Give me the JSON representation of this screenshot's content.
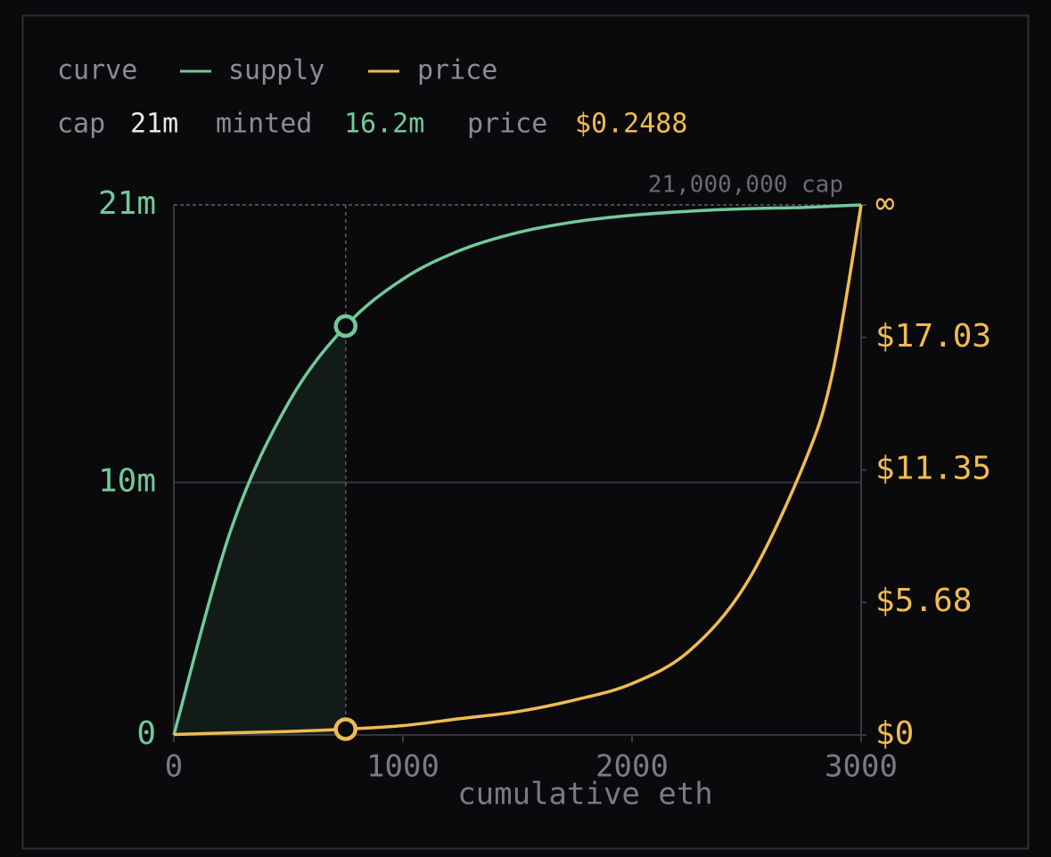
{
  "chart_data": {
    "type": "line",
    "legend_title": "curve",
    "cap_label": "cap",
    "cap_value": "21m",
    "minted_label": "minted",
    "minted_value": "16.2m",
    "price_label": "price",
    "price_value": "$0.2488",
    "cap_annotation": "21,000,000 cap",
    "xlabel": "cumulative eth",
    "x": [
      0,
      250,
      500,
      750,
      1000,
      1250,
      1500,
      1750,
      2000,
      2250,
      2500,
      2750,
      2875,
      3000
    ],
    "xlim": [
      0,
      3000
    ],
    "xticks": [
      0,
      1000,
      2000,
      3000
    ],
    "ylim": [
      0,
      21
    ],
    "yticks": [
      0,
      {
        "value": 10,
        "label": "10m"
      },
      {
        "value": 21,
        "label": "21m"
      }
    ],
    "y2lim": [
      0,
      22.71
    ],
    "y2ticks": [
      {
        "value": 0,
        "label": "$0"
      },
      {
        "value": 5.68,
        "label": "$5.68"
      },
      {
        "value": 11.35,
        "label": "$11.35"
      },
      {
        "value": 17.03,
        "label": "$17.03"
      },
      {
        "value": 22.71,
        "label": "∞"
      }
    ],
    "highlight_x": 750,
    "series": [
      {
        "name": "supply",
        "color": "#72c99a",
        "values": [
          0,
          8.15,
          13.15,
          16.2,
          18.06,
          19.2,
          19.9,
          20.33,
          20.59,
          20.75,
          20.85,
          20.9,
          20.95,
          21
        ]
      },
      {
        "name": "price",
        "color": "#f0bb52",
        "axis": "y2",
        "values": [
          0.02,
          0.09,
          0.15,
          0.2488,
          0.4,
          0.7,
          1.0,
          1.5,
          2.2,
          3.6,
          6.5,
          11.6,
          15.5,
          22.71
        ]
      }
    ]
  }
}
